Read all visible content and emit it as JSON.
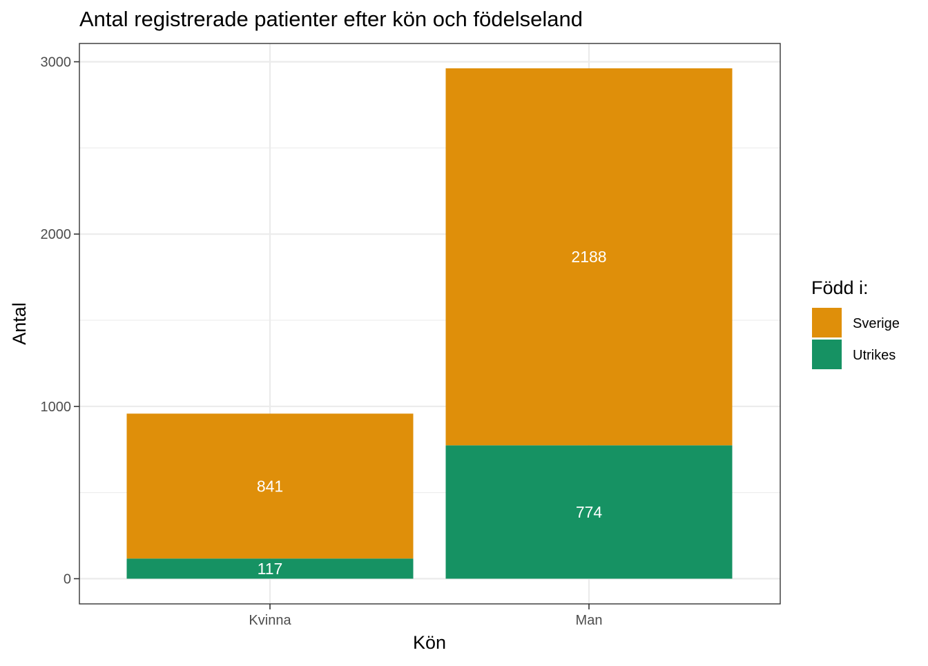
{
  "chart_data": {
    "type": "bar",
    "stacked": true,
    "title": "Antal registrerade patienter efter kön och födelseland",
    "xlabel": "Kön",
    "ylabel": "Antal",
    "categories": [
      "Kvinna",
      "Man"
    ],
    "series": [
      {
        "name": "Utrikes",
        "values": [
          117,
          774
        ],
        "color": "#1b9e77",
        "fill": "#169263"
      },
      {
        "name": "Sverige",
        "values": [
          841,
          2188
        ],
        "color": "#df8f0a",
        "fill": "#df8f0a"
      }
    ],
    "ylim": [
      0,
      3000
    ],
    "yticks": [
      0,
      1000,
      2000,
      3000
    ],
    "ytick_labels": [
      "0",
      "1000",
      "2000",
      "3000"
    ],
    "grid": true,
    "legend": {
      "title": "Född i:",
      "position": "right",
      "entries": [
        "Sverige",
        "Utrikes"
      ]
    }
  }
}
